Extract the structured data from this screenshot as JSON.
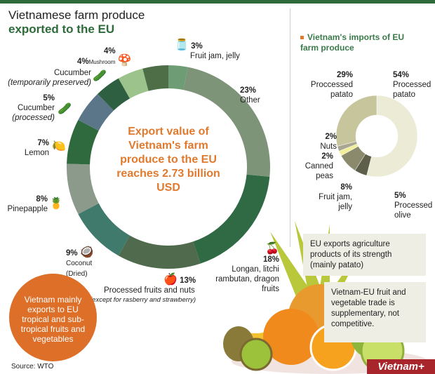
{
  "header": {
    "title_line1": "Vietnamese farm produce",
    "title_line2": "exported to the EU"
  },
  "center_text": "Export value of Vietnam's farm produce to the EU reaches 2.73 billion USD",
  "note_circle": "Vietnam mainly exports to EU tropical and sub-tropical fruits and vegetables",
  "source": "Source: WTO",
  "boxes": {
    "eu_exports": "EU exports agriculture products of its strength (mainly patato)",
    "trade": "Vietnam-EU fruit and vegetable trade is supplementary, not competitive."
  },
  "logo": "Vietnam+",
  "chart_data": [
    {
      "type": "pie",
      "donut": true,
      "title": "Vietnamese farm produce exported to the EU",
      "slices": [
        {
          "label": "Fruit jam, jelly",
          "pct_label": "3%",
          "value": 3,
          "color": "#6e9c74",
          "icon": "jar-icon"
        },
        {
          "label": "Other",
          "pct_label": "23%",
          "value": 23,
          "color": "#7d9479"
        },
        {
          "label": "Longan, litchi rambutan, dragon fruits",
          "pct_label": "18%",
          "value": 18,
          "color": "#2f6a44",
          "icon": "lychee-icon"
        },
        {
          "label": "Processed fruits and nuts",
          "sublabel": "(except for rasberry and strawberry)",
          "pct_label": "13%",
          "value": 13,
          "color": "#4f6a4c",
          "icon": "fruit-icon"
        },
        {
          "label": "Coconut (Dried)",
          "pct_label": "9%",
          "value": 9,
          "color": "#3f7a6c",
          "icon": "coconut-icon"
        },
        {
          "label": "Pinepapple",
          "pct_label": "8%",
          "value": 8,
          "color": "#8c9a8c",
          "icon": "pineapple-icon"
        },
        {
          "label": "Lemon",
          "pct_label": "7%",
          "value": 7,
          "color": "#2f6a3f",
          "icon": "lemon-icon"
        },
        {
          "label": "Cucumber",
          "sublabel": "(processed)",
          "pct_label": "5%",
          "value": 5,
          "color": "#5b7688",
          "icon": "cucumber-icon"
        },
        {
          "label": "Cucumber",
          "sublabel": "(temporarily preserved)",
          "pct_label": "4%",
          "value": 4,
          "color": "#2e5f40",
          "icon": "pickle-icon"
        },
        {
          "label": "Mushroom",
          "pct_label": "4%",
          "value": 4,
          "color": "#9cc38b",
          "icon": "mushroom-icon"
        },
        {
          "label": "",
          "pct_label": "4%",
          "value": 4,
          "color": "#4e6e48"
        }
      ]
    },
    {
      "type": "pie",
      "donut": true,
      "title": "Vietnam's imports of EU farm produce",
      "slices": [
        {
          "label": "Processed patato",
          "pct_label": "54%",
          "value": 54,
          "color": "#ecebd6"
        },
        {
          "label": "Processed olive",
          "pct_label": "5%",
          "value": 5,
          "color": "#5e5f4b"
        },
        {
          "label": "Fruit jam, jelly",
          "pct_label": "8%",
          "value": 8,
          "color": "#8b8a6c"
        },
        {
          "label": "Canned peas",
          "pct_label": "2%",
          "value": 2,
          "color": "#f1ee9c"
        },
        {
          "label": "Nuts",
          "pct_label": "2%",
          "value": 2,
          "color": "#a9a791"
        },
        {
          "label": "Proccessed patato",
          "pct_label": "29%",
          "value": 29,
          "color": "#c7c59b"
        }
      ]
    }
  ]
}
